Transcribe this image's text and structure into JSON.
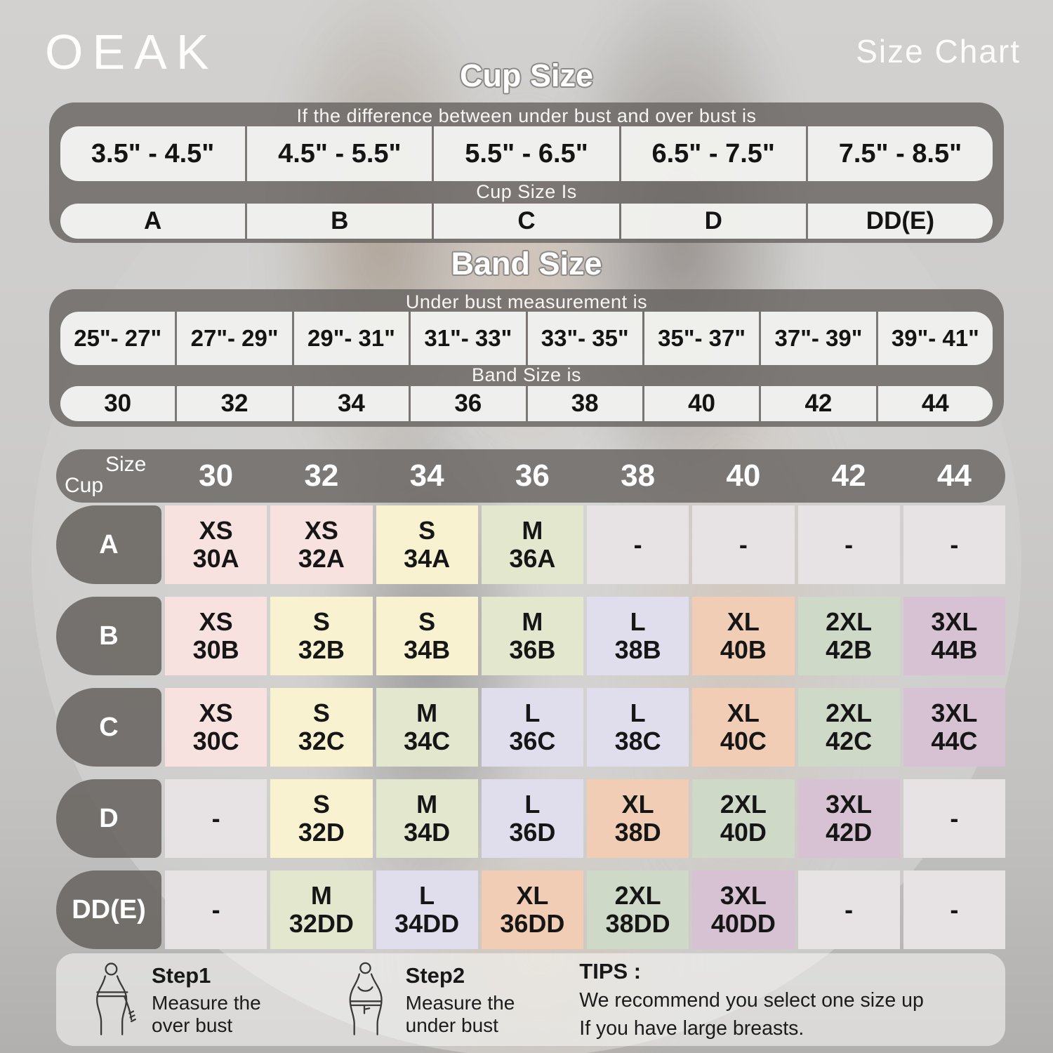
{
  "brand": "OEAK",
  "page_title": "Size Chart",
  "cup_section": {
    "title": "Cup Size",
    "condition_label": "If the  difference between under bust and over bust is",
    "ranges": [
      "3.5\" -  4.5\"",
      "4.5\" -  5.5\"",
      "5.5\" -  6.5\"",
      "6.5\" -  7.5\"",
      "7.5\" -  8.5\""
    ],
    "result_label": "Cup Size Is",
    "values": [
      "A",
      "B",
      "C",
      "D",
      "DD(E)"
    ]
  },
  "band_section": {
    "title": "Band Size",
    "condition_label": "Under bust measurement is",
    "ranges": [
      "25\"- 27\"",
      "27\"- 29\"",
      "29\"- 31\"",
      "31\"- 33\"",
      "33\"- 35\"",
      "35\"- 37\"",
      "37\"- 39\"",
      "39\"- 41\""
    ],
    "result_label": "Band Size is",
    "values": [
      "30",
      "32",
      "34",
      "36",
      "38",
      "40",
      "42",
      "44"
    ]
  },
  "matrix": {
    "corner_top": "Size",
    "corner_bottom": "Cup",
    "columns": [
      "30",
      "32",
      "34",
      "36",
      "38",
      "40",
      "42",
      "44"
    ],
    "rows": [
      {
        "cup": "A",
        "cells": [
          {
            "size": "XS",
            "code": "30A",
            "color": "xs"
          },
          {
            "size": "XS",
            "code": "32A",
            "color": "xs"
          },
          {
            "size": "S",
            "code": "34A",
            "color": "s"
          },
          {
            "size": "M",
            "code": "36A",
            "color": "m"
          },
          {
            "size": "-",
            "code": "",
            "color": "dash"
          },
          {
            "size": "-",
            "code": "",
            "color": "dash"
          },
          {
            "size": "-",
            "code": "",
            "color": "dash"
          },
          {
            "size": "-",
            "code": "",
            "color": "dash"
          }
        ]
      },
      {
        "cup": "B",
        "cells": [
          {
            "size": "XS",
            "code": "30B",
            "color": "xs"
          },
          {
            "size": "S",
            "code": "32B",
            "color": "s"
          },
          {
            "size": "S",
            "code": "34B",
            "color": "s"
          },
          {
            "size": "M",
            "code": "36B",
            "color": "m"
          },
          {
            "size": "L",
            "code": "38B",
            "color": "l"
          },
          {
            "size": "XL",
            "code": "40B",
            "color": "xl"
          },
          {
            "size": "2XL",
            "code": "42B",
            "color": "xxl"
          },
          {
            "size": "3XL",
            "code": "44B",
            "color": "xxxl"
          }
        ]
      },
      {
        "cup": "C",
        "cells": [
          {
            "size": "XS",
            "code": "30C",
            "color": "xs"
          },
          {
            "size": "S",
            "code": "32C",
            "color": "s"
          },
          {
            "size": "M",
            "code": "34C",
            "color": "m"
          },
          {
            "size": "L",
            "code": "36C",
            "color": "l"
          },
          {
            "size": "L",
            "code": "38C",
            "color": "l"
          },
          {
            "size": "XL",
            "code": "40C",
            "color": "xl"
          },
          {
            "size": "2XL",
            "code": "42C",
            "color": "xxl"
          },
          {
            "size": "3XL",
            "code": "44C",
            "color": "xxxl"
          }
        ]
      },
      {
        "cup": "D",
        "cells": [
          {
            "size": "-",
            "code": "",
            "color": "dash"
          },
          {
            "size": "S",
            "code": "32D",
            "color": "s"
          },
          {
            "size": "M",
            "code": "34D",
            "color": "m"
          },
          {
            "size": "L",
            "code": "36D",
            "color": "l"
          },
          {
            "size": "XL",
            "code": "38D",
            "color": "xl"
          },
          {
            "size": "2XL",
            "code": "40D",
            "color": "xxl"
          },
          {
            "size": "3XL",
            "code": "42D",
            "color": "xxxl"
          },
          {
            "size": "-",
            "code": "",
            "color": "dash"
          }
        ]
      },
      {
        "cup": "DD(E)",
        "cells": [
          {
            "size": "-",
            "code": "",
            "color": "dash"
          },
          {
            "size": "M",
            "code": "32DD",
            "color": "m"
          },
          {
            "size": "L",
            "code": "34DD",
            "color": "l"
          },
          {
            "size": "XL",
            "code": "36DD",
            "color": "xl"
          },
          {
            "size": "2XL",
            "code": "38DD",
            "color": "xxl"
          },
          {
            "size": "3XL",
            "code": "40DD",
            "color": "xxxl"
          },
          {
            "size": "-",
            "code": "",
            "color": "dash"
          },
          {
            "size": "-",
            "code": "",
            "color": "dash"
          }
        ]
      }
    ]
  },
  "footer": {
    "steps": [
      {
        "title": "Step1",
        "lines": [
          "Measure the",
          "over bust"
        ],
        "icon": "measure-over-bust-icon"
      },
      {
        "title": "Step2",
        "lines": [
          "Measure the",
          "under bust"
        ],
        "icon": "measure-under-bust-icon"
      }
    ],
    "tips": {
      "title": "TIPS :",
      "lines": [
        "We recommend you select one size up",
        "If you have large breasts."
      ]
    }
  },
  "colors": {
    "xs": "#f8e2df",
    "s": "#f8f2d0",
    "m": "#e2e7ce",
    "l": "#e0ddec",
    "xl": "#f0cdb4",
    "xxl": "#cedac7",
    "xxxl": "#d6c2d2",
    "dash": "#e7e3e4",
    "panel_dark": "rgba(104,100,97,0.82)",
    "panel_dark2": "rgba(104,100,97,0.88)",
    "cell_light": "rgba(247,246,244,0.94)"
  }
}
